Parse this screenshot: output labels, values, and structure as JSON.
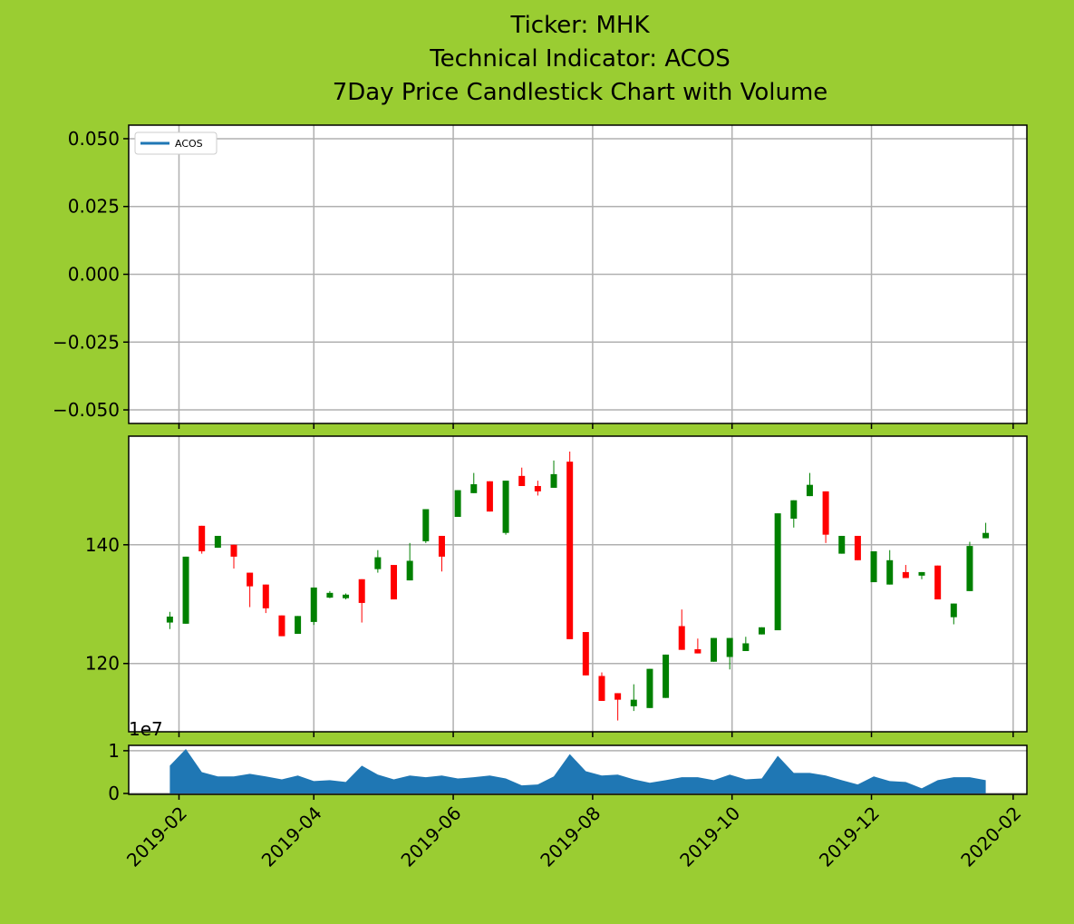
{
  "chart_data": {
    "type": "panels",
    "title": [
      "Ticker: MHK",
      "Technical Indicator: ACOS",
      "7Day Price Candlestick Chart with Volume"
    ],
    "x": [
      "2019-01-28",
      "2019-02-04",
      "2019-02-11",
      "2019-02-18",
      "2019-02-25",
      "2019-03-04",
      "2019-03-11",
      "2019-03-18",
      "2019-03-25",
      "2019-04-01",
      "2019-04-08",
      "2019-04-15",
      "2019-04-22",
      "2019-04-29",
      "2019-05-06",
      "2019-05-13",
      "2019-05-20",
      "2019-05-27",
      "2019-06-03",
      "2019-06-10",
      "2019-06-17",
      "2019-06-24",
      "2019-07-01",
      "2019-07-08",
      "2019-07-15",
      "2019-07-22",
      "2019-07-29",
      "2019-08-05",
      "2019-08-12",
      "2019-08-19",
      "2019-08-26",
      "2019-09-02",
      "2019-09-09",
      "2019-09-16",
      "2019-09-23",
      "2019-09-30",
      "2019-10-07",
      "2019-10-14",
      "2019-10-21",
      "2019-10-28",
      "2019-11-04",
      "2019-11-11",
      "2019-11-18",
      "2019-11-25",
      "2019-12-02",
      "2019-12-09",
      "2019-12-16",
      "2019-12-23",
      "2019-12-30",
      "2020-01-06",
      "2020-01-13",
      "2020-01-20"
    ],
    "xlim": [
      "2019-01-10",
      "2020-02-07"
    ],
    "xticks": [
      "2019-02",
      "2019-04",
      "2019-06",
      "2019-08",
      "2019-10",
      "2019-12",
      "2020-02"
    ],
    "panels": [
      {
        "type": "line",
        "grid": true,
        "legend": "upper left",
        "ylim": [
          -0.055,
          0.055
        ],
        "yticks": [
          {
            "value": -0.05,
            "label": "−0.050"
          },
          {
            "value": -0.025,
            "label": "−0.025"
          },
          {
            "value": 0,
            "label": "0.000"
          },
          {
            "value": 0.025,
            "label": "0.025"
          },
          {
            "value": 0.05,
            "label": "0.050"
          }
        ],
        "series": [
          {
            "name": "ACOS",
            "color": "#1f77b4",
            "values": [
              null,
              null,
              null,
              null,
              null,
              null,
              null,
              null,
              null,
              null,
              null,
              null,
              null,
              null,
              null,
              null,
              null,
              null,
              null,
              null,
              null,
              null,
              null,
              null,
              null,
              null,
              null,
              null,
              null,
              null,
              null,
              null,
              null,
              null,
              null,
              null,
              null,
              null,
              null,
              null,
              null,
              null,
              null,
              null,
              null,
              null,
              null,
              null,
              null,
              null,
              null,
              null
            ]
          }
        ]
      },
      {
        "type": "candlestick",
        "grid": true,
        "up_color": "#008000",
        "down_color": "#ff0000",
        "ylim": [
          108.5,
          158.3
        ],
        "yticks": [
          120,
          140
        ],
        "open": [
          126.9,
          126.7,
          143.2,
          139.5,
          140,
          135.3,
          133.3,
          128.1,
          125,
          127,
          131.1,
          131,
          134.2,
          135.9,
          136.6,
          134,
          140.6,
          141.5,
          144.7,
          148.7,
          150.7,
          142,
          151.6,
          149.9,
          149.6,
          154,
          125.3,
          117.9,
          115,
          112.8,
          112.5,
          114.2,
          126.3,
          122.4,
          120.3,
          121.1,
          122.1,
          124.9,
          125.6,
          144.4,
          148.2,
          149,
          138.5,
          141.5,
          133.7,
          133.3,
          135.4,
          134.8,
          136.5,
          127.8,
          132.2,
          141.1
        ],
        "high": [
          128.7,
          138,
          143.2,
          141.5,
          140,
          135.3,
          133.3,
          128.1,
          128,
          132.8,
          132.2,
          131.8,
          134.2,
          139.1,
          136.6,
          140.3,
          146,
          141.5,
          149.2,
          152.1,
          150.7,
          150.8,
          153,
          150.8,
          154.2,
          155.7,
          125.3,
          118.5,
          115,
          116.5,
          119.1,
          121.5,
          129.1,
          124.2,
          124.3,
          124.3,
          124.5,
          126.1,
          145.3,
          147.5,
          152.1,
          149,
          141.5,
          141.5,
          138.9,
          139.1,
          136.6,
          135.4,
          136.5,
          130.1,
          140.5,
          143.7
        ],
        "low": [
          125.8,
          126.7,
          138.5,
          139.5,
          136,
          129.5,
          128.5,
          124.6,
          125,
          126.5,
          131,
          130.8,
          126.9,
          135.3,
          130.8,
          134,
          140.3,
          135.5,
          144.7,
          148.7,
          145.6,
          141.7,
          149.9,
          148.3,
          149.6,
          124.1,
          118,
          113.7,
          110.4,
          112,
          112.5,
          114.2,
          122.3,
          121.7,
          120.3,
          119,
          122.1,
          124.9,
          125.6,
          142.9,
          148.2,
          140.3,
          138.5,
          137.4,
          133.7,
          133.3,
          134.4,
          134.2,
          130.8,
          126.6,
          132.2,
          141.1
        ],
        "close": [
          127.9,
          138,
          138.9,
          141.5,
          138,
          133,
          129.3,
          124.6,
          128,
          132.8,
          131.9,
          131.6,
          130.2,
          137.9,
          130.8,
          137.3,
          146,
          138,
          149.2,
          150.2,
          145.6,
          150.8,
          149.9,
          149,
          151.9,
          124.1,
          118,
          113.7,
          113.9,
          113.9,
          119.1,
          121.5,
          122.3,
          121.7,
          124.3,
          124.3,
          123.4,
          126.1,
          145.3,
          147.5,
          150.1,
          141.7,
          141.5,
          137.4,
          138.9,
          137.4,
          134.4,
          135.4,
          130.8,
          130.1,
          139.8,
          142
        ]
      },
      {
        "type": "area",
        "grid": "y",
        "color": "#1f77b4",
        "offset_label": "1e7",
        "ylim": [
          -200000,
          11250000
        ],
        "yticks": [
          0,
          {
            "value": 10000000,
            "label": "1"
          }
        ],
        "values": [
          6500000,
          10400000,
          5000000,
          4000000,
          4000000,
          4600000,
          4000000,
          3300000,
          4200000,
          2900000,
          3100000,
          2700000,
          6500000,
          4400000,
          3300000,
          4200000,
          3800000,
          4200000,
          3500000,
          3800000,
          4200000,
          3500000,
          1900000,
          2100000,
          4000000,
          9200000,
          5200000,
          4200000,
          4400000,
          3300000,
          2500000,
          3100000,
          3800000,
          3800000,
          3100000,
          4400000,
          3300000,
          3500000,
          8800000,
          4800000,
          4800000,
          4200000,
          3100000,
          2100000,
          4000000,
          2900000,
          2700000,
          1200000,
          3100000,
          3800000,
          3800000,
          3100000
        ]
      }
    ]
  }
}
